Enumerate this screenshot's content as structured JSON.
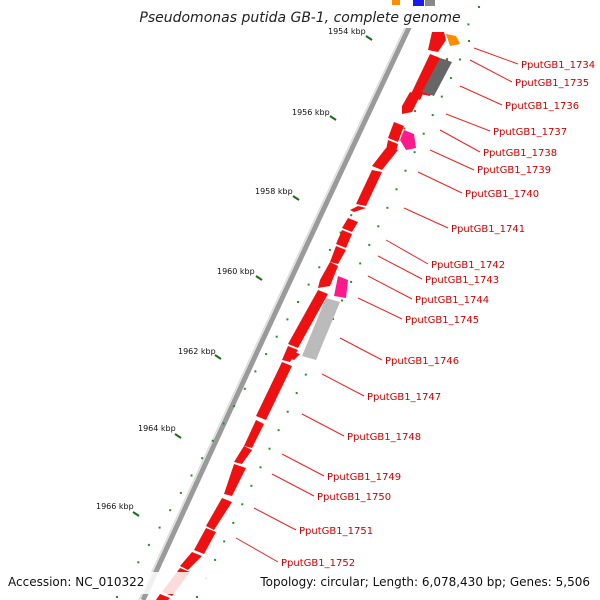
{
  "title": "Pseudomonas putida GB-1, complete genome",
  "accession": "Accession: NC_010322",
  "summary": "Topology: circular; Length: 6,078,430 bp; Genes: 5,506",
  "scale_labels": [
    "1954 kbp",
    "1956 kbp",
    "1958 kbp",
    "1960 kbp",
    "1962 kbp",
    "1964 kbp",
    "1966 kbp"
  ],
  "gene_labels": [
    "PputGB1_1734",
    "PputGB1_1735",
    "PputGB1_1736",
    "PputGB1_1737",
    "PputGB1_1738",
    "PputGB1_1739",
    "PputGB1_1740",
    "PputGB1_1741",
    "PputGB1_1742",
    "PputGB1_1743",
    "PputGB1_1744",
    "PputGB1_1745",
    "PputGB1_1746",
    "PputGB1_1747",
    "PputGB1_1748",
    "PputGB1_1749",
    "PputGB1_1750",
    "PputGB1_1751",
    "PputGB1_1752"
  ],
  "colors": {
    "gene_cds": "#ee1111",
    "gene_label": "#cc0000",
    "leader_line": "#ee2222",
    "pink_feature": "#ff1a8c",
    "gray_feature": "#bbbbbb",
    "dark_gray_feature": "#666666",
    "orange_feature": "#ff8c00",
    "blue_feature": "#1a1aee",
    "backbone": "#9a9a9a",
    "tick_dots": "#2e8b2e"
  }
}
